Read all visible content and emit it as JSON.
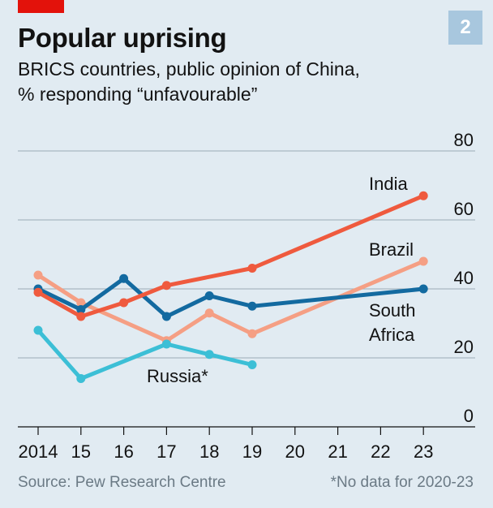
{
  "badge": "2",
  "title": "Popular uprising",
  "subtitle_line1": "BRICS countries, public opinion of China,",
  "subtitle_line2": "% responding “unfavourable”",
  "source": "Source: Pew Research Centre",
  "note": "*No data for 2020-23",
  "colors": {
    "background": "#e1ebf2",
    "grid": "#a9b8c2",
    "brand_red": "#e3120b",
    "india": "#ef5a3e",
    "brazil": "#f59f84",
    "south_africa": "#136aa0",
    "russia": "#3cbfd6"
  },
  "chart_data": {
    "type": "line",
    "x": [
      2014,
      2015,
      2016,
      2017,
      2018,
      2019,
      2020,
      2021,
      2022,
      2023
    ],
    "x_tick_labels": [
      "2014",
      "15",
      "16",
      "17",
      "18",
      "19",
      "20",
      "21",
      "22",
      "23"
    ],
    "y_ticks": [
      "80",
      "60",
      "40",
      "20",
      "0"
    ],
    "ylim": [
      0,
      80
    ],
    "grid": true,
    "series": [
      {
        "name": "India",
        "color_key": "india",
        "points": [
          [
            2014,
            39
          ],
          [
            2015,
            32
          ],
          [
            2016,
            36
          ],
          [
            2017,
            41
          ],
          [
            2019,
            46
          ],
          [
            2023,
            67
          ]
        ]
      },
      {
        "name": "Brazil",
        "color_key": "brazil",
        "points": [
          [
            2014,
            44
          ],
          [
            2015,
            36
          ],
          [
            2017,
            25
          ],
          [
            2018,
            33
          ],
          [
            2019,
            27
          ],
          [
            2023,
            48
          ]
        ]
      },
      {
        "name": "South Africa",
        "label_lines": [
          "South",
          "Africa"
        ],
        "color_key": "south_africa",
        "points": [
          [
            2014,
            40
          ],
          [
            2015,
            34
          ],
          [
            2016,
            43
          ],
          [
            2017,
            32
          ],
          [
            2018,
            38
          ],
          [
            2019,
            35
          ],
          [
            2023,
            40
          ]
        ]
      },
      {
        "name": "Russia*",
        "color_key": "russia",
        "points": [
          [
            2014,
            28
          ],
          [
            2015,
            14
          ],
          [
            2017,
            24
          ],
          [
            2018,
            21
          ],
          [
            2019,
            18
          ]
        ]
      }
    ]
  }
}
